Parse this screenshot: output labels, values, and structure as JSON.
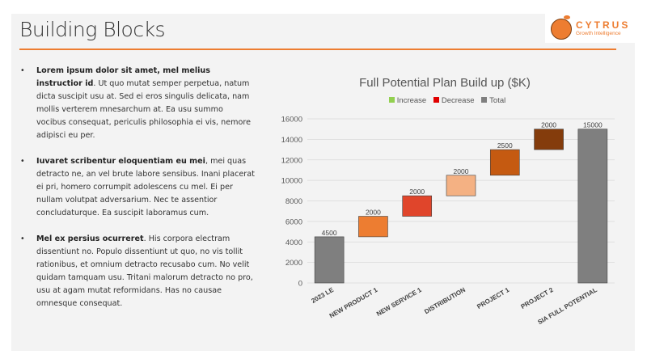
{
  "slide": {
    "title": "Building Blocks"
  },
  "logo": {
    "name": "CYTRUS",
    "tagline": "Growth Intelligence"
  },
  "bullets": [
    {
      "bold": "Lorem ipsum dolor sit amet, mel melius instructior id",
      "text": ". Ut quo mutat semper perpetua, natum dicta suscipit usu at. Sed ei eros singulis delicata, nam mollis verterem mnesarchum at. Ea usu summo vocibus consequat, periculis philosophia ei vis, nemore adipisci eu per."
    },
    {
      "bold": "Iuvaret scribentur eloquentiam eu mei",
      "text": ", mei quas detracto ne, an vel brute labore sensibus. Inani placerat ei pri, homero corrumpit adolescens cu mel. Ei per nullam volutpat adversarium. Nec te assentior concludaturque. Ea suscipit laboramus cum."
    },
    {
      "bold": "Mel ex persius ocurreret",
      "text": ". His corpora electram dissentiunt no. Populo dissentiunt ut quo, no vis tollit rationibus, et omnium detracto recusabo cum. No velit quidam tamquam usu. Tritani malorum detracto no pro, usu at agam mutat reformidans. Has no causae omnesque consequat."
    }
  ],
  "chart_data": {
    "type": "bar",
    "subtype": "waterfall",
    "title": "Full Potential Plan Build up ($K)",
    "legend": [
      {
        "label": "Increase",
        "color": "#92D050"
      },
      {
        "label": "Decrease",
        "color": "#E00000"
      },
      {
        "label": "Total",
        "color": "#7F7F7F"
      }
    ],
    "categories": [
      "2023 LE",
      "NEW PRODUCT 1",
      "NEW SERVICE 1",
      "DISTRIBUTION",
      "PROJECT 1",
      "PROJECT 2",
      "SIA FULL POTENTIAL"
    ],
    "values": [
      4500,
      2000,
      2000,
      2000,
      2500,
      2000,
      15000
    ],
    "kinds": [
      "total",
      "increase",
      "increase",
      "increase",
      "increase",
      "increase",
      "total"
    ],
    "colors": [
      "#7F7F7F",
      "#ED7D31",
      "#E0452B",
      "#F4B183",
      "#C55A11",
      "#843C0C",
      "#7F7F7F"
    ],
    "yticks": [
      0,
      2000,
      4000,
      6000,
      8000,
      10000,
      12000,
      14000,
      16000
    ],
    "ylim": [
      0,
      16000
    ]
  }
}
